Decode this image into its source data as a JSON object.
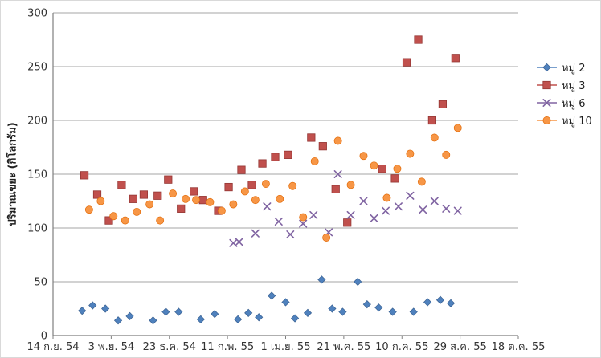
{
  "chart_data": {
    "type": "scatter",
    "title": "",
    "xlabel": "",
    "ylabel": "ปริมาณขยะ (กิโลกรัม)",
    "grid": "horizontal",
    "legend_position": "right",
    "y_axis": {
      "min": 0,
      "max": 300,
      "step": 50,
      "tick_labels": [
        "0",
        "50",
        "100",
        "150",
        "200",
        "250",
        "300"
      ]
    },
    "x_axis": {
      "unit": "days since 14 Sep 2011 (B.E. 2554)",
      "max_days": 400,
      "tick_step_days": 50,
      "tick_labels": [
        "14 ก.ย. 54",
        "3 พ.ย. 54",
        "23 ธ.ค. 54",
        "11 ก.พ. 55",
        "1 เม.ย. 55",
        "21 พ.ค. 55",
        "10 ก.ค. 55",
        "29 ส.ค. 55",
        "18 ต.ค. 55"
      ]
    },
    "series": [
      {
        "id": "group-2",
        "name": "หมู่ 2",
        "marker": "diamond",
        "color": "#4F81BD",
        "edge": "#3A6191",
        "points": [
          [
            25,
            23
          ],
          [
            34,
            28
          ],
          [
            45,
            25
          ],
          [
            56,
            14
          ],
          [
            66,
            18
          ],
          [
            86,
            14
          ],
          [
            97,
            22
          ],
          [
            108,
            22
          ],
          [
            127,
            15
          ],
          [
            139,
            20
          ],
          [
            159,
            15
          ],
          [
            168,
            21
          ],
          [
            177,
            17
          ],
          [
            188,
            37
          ],
          [
            200,
            31
          ],
          [
            208,
            16
          ],
          [
            219,
            21
          ],
          [
            231,
            52
          ],
          [
            240,
            25
          ],
          [
            249,
            22
          ],
          [
            262,
            50
          ],
          [
            270,
            29
          ],
          [
            280,
            26
          ],
          [
            292,
            22
          ],
          [
            310,
            22
          ],
          [
            322,
            31
          ],
          [
            333,
            33
          ],
          [
            342,
            30
          ]
        ]
      },
      {
        "id": "group-3",
        "name": "หมู่ 3",
        "marker": "square",
        "color": "#C0504D",
        "edge": "#943634",
        "points": [
          [
            27,
            149
          ],
          [
            38,
            131
          ],
          [
            48,
            107
          ],
          [
            59,
            140
          ],
          [
            69,
            127
          ],
          [
            78,
            131
          ],
          [
            90,
            130
          ],
          [
            99,
            145
          ],
          [
            110,
            118
          ],
          [
            121,
            134
          ],
          [
            129,
            126
          ],
          [
            142,
            116
          ],
          [
            151,
            138
          ],
          [
            162,
            154
          ],
          [
            171,
            140
          ],
          [
            180,
            160
          ],
          [
            191,
            166
          ],
          [
            202,
            168
          ],
          [
            222,
            184
          ],
          [
            232,
            176
          ],
          [
            243,
            136
          ],
          [
            253,
            105
          ],
          [
            283,
            155
          ],
          [
            294,
            146
          ],
          [
            304,
            254
          ],
          [
            314,
            275
          ],
          [
            326,
            200
          ],
          [
            335,
            215
          ],
          [
            346,
            258
          ]
        ]
      },
      {
        "id": "group-6",
        "name": "หมู่ 6",
        "marker": "x",
        "color": "#8064A2",
        "edge": "#8064A2",
        "points": [
          [
            155,
            86
          ],
          [
            160,
            87
          ],
          [
            174,
            95
          ],
          [
            184,
            120
          ],
          [
            194,
            106
          ],
          [
            204,
            94
          ],
          [
            215,
            104
          ],
          [
            224,
            112
          ],
          [
            237,
            96
          ],
          [
            245,
            150
          ],
          [
            256,
            112
          ],
          [
            267,
            125
          ],
          [
            276,
            109
          ],
          [
            286,
            116
          ],
          [
            297,
            120
          ],
          [
            307,
            130
          ],
          [
            318,
            117
          ],
          [
            328,
            125
          ],
          [
            338,
            118
          ],
          [
            348,
            116
          ]
        ]
      },
      {
        "id": "group-10",
        "name": "หมู่ 10",
        "marker": "circle",
        "color": "#F79646",
        "edge": "#E36C0A",
        "points": [
          [
            31,
            117
          ],
          [
            41,
            125
          ],
          [
            52,
            111
          ],
          [
            62,
            107
          ],
          [
            72,
            115
          ],
          [
            83,
            122
          ],
          [
            92,
            107
          ],
          [
            103,
            132
          ],
          [
            114,
            127
          ],
          [
            123,
            126
          ],
          [
            135,
            124
          ],
          [
            145,
            116
          ],
          [
            155,
            122
          ],
          [
            165,
            134
          ],
          [
            174,
            126
          ],
          [
            183,
            141
          ],
          [
            195,
            127
          ],
          [
            206,
            139
          ],
          [
            215,
            110
          ],
          [
            225,
            162
          ],
          [
            235,
            91
          ],
          [
            245,
            181
          ],
          [
            256,
            140
          ],
          [
            267,
            167
          ],
          [
            276,
            158
          ],
          [
            287,
            128
          ],
          [
            296,
            155
          ],
          [
            307,
            169
          ],
          [
            317,
            143
          ],
          [
            328,
            184
          ],
          [
            338,
            168
          ],
          [
            348,
            193
          ]
        ]
      }
    ]
  },
  "colors": {
    "gridline": "#A6A6A6",
    "axis": "#7F7F7F",
    "tick_text": "#333333",
    "background": "#FFFFFF"
  }
}
